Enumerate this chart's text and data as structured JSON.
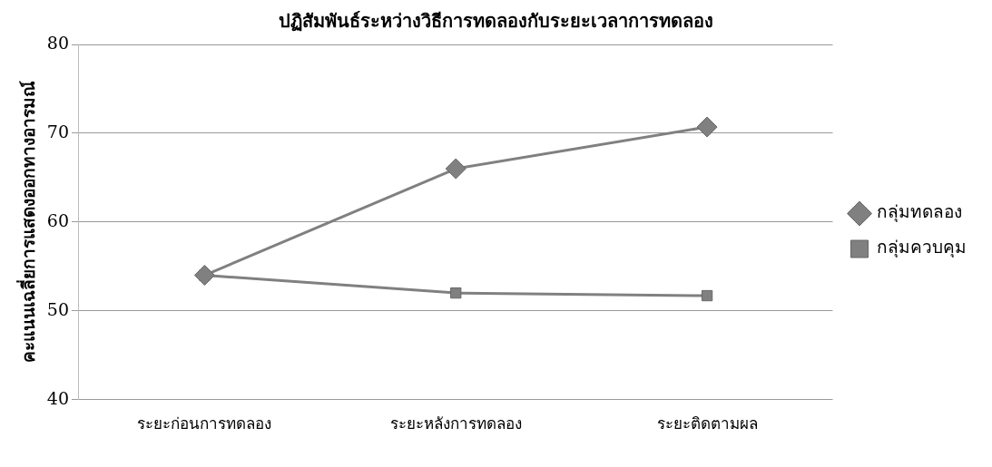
{
  "chart_data": {
    "type": "line",
    "title": "ปฏิสัมพันธ์ระหว่างวิธีการทดลองกับระยะเวลาการทดลอง",
    "ylabel": "คะแนนเฉลี่ยการแสดงออกทางอารมณ์",
    "categories": [
      "ระยะก่อนการทดลอง",
      "ระยะหลังการทดลอง",
      "ระยะติดตามผล"
    ],
    "series": [
      {
        "name": "กลุ่มทดลอง",
        "color": "#808080",
        "marker": "diamond",
        "values": [
          54,
          66,
          70.7
        ]
      },
      {
        "name": "กลุ่มควบคุม",
        "color": "#808080",
        "marker": "square",
        "values": [
          54,
          52,
          51.7
        ]
      }
    ],
    "ylim": [
      40,
      80
    ],
    "yticks": [
      40,
      50,
      60,
      70,
      80
    ],
    "grid": "y",
    "legend": "right"
  }
}
